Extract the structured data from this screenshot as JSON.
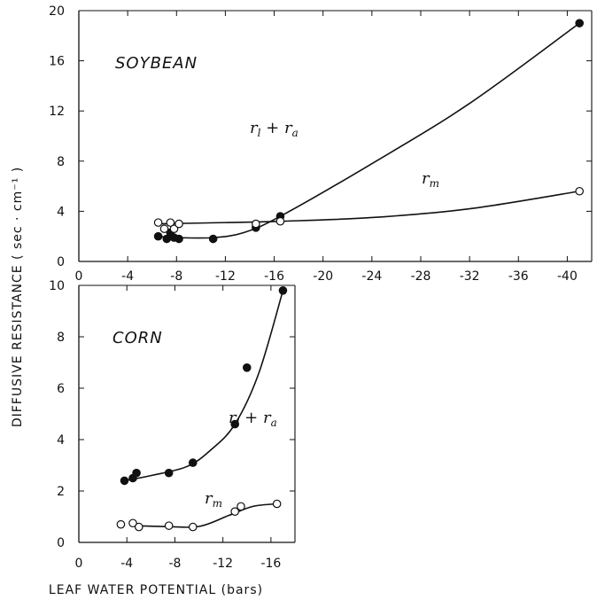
{
  "axis_titles": {
    "y": "DIFFUSIVE  RESISTANCE  ( sec · cm⁻¹ )",
    "x": "LEAF  WATER  POTENTIAL  (bars)"
  },
  "chart_data": [
    {
      "type": "scatter",
      "title": "SOYBEAN",
      "xlim": [
        0,
        -42
      ],
      "ylim": [
        0,
        20
      ],
      "x_ticks": [
        0,
        -4,
        -8,
        -12,
        -16,
        -20,
        -24,
        -28,
        -32,
        -36,
        -40
      ],
      "x_tick_labels": [
        "0",
        "-4",
        "-8",
        "-12",
        "-16",
        "-20",
        "-24",
        "-28",
        "-32",
        "-36",
        "-40"
      ],
      "y_ticks": [
        0,
        4,
        8,
        12,
        16,
        20
      ],
      "y_tick_labels": [
        "0",
        "4",
        "8",
        "12",
        "16",
        "20"
      ],
      "series": [
        {
          "name": "r_l + r_a",
          "label_main": "r",
          "label_sub1": "l",
          "label_mid": " + r",
          "label_sub2": "a",
          "marker": "filled",
          "points": [
            {
              "x": -6.5,
              "y": 2.0
            },
            {
              "x": -7.2,
              "y": 1.8
            },
            {
              "x": -7.5,
              "y": 2.3
            },
            {
              "x": -7.8,
              "y": 1.9
            },
            {
              "x": -8.2,
              "y": 1.8
            },
            {
              "x": -11.0,
              "y": 1.8
            },
            {
              "x": -14.5,
              "y": 2.7
            },
            {
              "x": -16.5,
              "y": 3.6
            },
            {
              "x": -41.0,
              "y": 19.0
            }
          ],
          "curve": [
            {
              "x": -6.5,
              "y": 2.0
            },
            {
              "x": -8.0,
              "y": 1.9
            },
            {
              "x": -11.0,
              "y": 1.9
            },
            {
              "x": -13.5,
              "y": 2.3
            },
            {
              "x": -16.5,
              "y": 3.6
            },
            {
              "x": -24.0,
              "y": 7.8
            },
            {
              "x": -32.0,
              "y": 12.6
            },
            {
              "x": -41.0,
              "y": 19.0
            }
          ]
        },
        {
          "name": "r_m",
          "label_main": "r",
          "label_sub1": "m",
          "marker": "open",
          "points": [
            {
              "x": -6.5,
              "y": 3.1
            },
            {
              "x": -7.0,
              "y": 2.6
            },
            {
              "x": -7.5,
              "y": 3.1
            },
            {
              "x": -7.8,
              "y": 2.6
            },
            {
              "x": -8.2,
              "y": 3.0
            },
            {
              "x": -14.5,
              "y": 3.0
            },
            {
              "x": -16.5,
              "y": 3.2
            },
            {
              "x": -41.0,
              "y": 5.6
            }
          ],
          "curve": [
            {
              "x": -6.5,
              "y": 3.0
            },
            {
              "x": -12.0,
              "y": 3.1
            },
            {
              "x": -16.5,
              "y": 3.2
            },
            {
              "x": -24.0,
              "y": 3.5
            },
            {
              "x": -32.0,
              "y": 4.2
            },
            {
              "x": -41.0,
              "y": 5.6
            }
          ]
        }
      ]
    },
    {
      "type": "scatter",
      "title": "CORN",
      "xlim": [
        0,
        -18
      ],
      "ylim": [
        0,
        10
      ],
      "x_ticks": [
        0,
        -4,
        -8,
        -12,
        -16
      ],
      "x_tick_labels": [
        "0",
        "-4",
        "-8",
        "-12",
        "-16"
      ],
      "y_ticks": [
        0,
        2,
        4,
        6,
        8,
        10
      ],
      "y_tick_labels": [
        "0",
        "2",
        "4",
        "6",
        "8",
        "10"
      ],
      "series": [
        {
          "name": "r_l + r_a",
          "label_main": "r",
          "label_sub1": "l",
          "label_mid": " + r",
          "label_sub2": "a",
          "marker": "filled",
          "points": [
            {
              "x": -3.8,
              "y": 2.4
            },
            {
              "x": -4.5,
              "y": 2.5
            },
            {
              "x": -4.8,
              "y": 2.7
            },
            {
              "x": -7.5,
              "y": 2.7
            },
            {
              "x": -9.5,
              "y": 3.1
            },
            {
              "x": -13.0,
              "y": 4.6
            },
            {
              "x": -14.0,
              "y": 6.8
            },
            {
              "x": -17.0,
              "y": 9.8
            }
          ],
          "curve": [
            {
              "x": -3.8,
              "y": 2.4
            },
            {
              "x": -6.0,
              "y": 2.6
            },
            {
              "x": -9.0,
              "y": 2.95
            },
            {
              "x": -11.0,
              "y": 3.6
            },
            {
              "x": -13.0,
              "y": 4.6
            },
            {
              "x": -15.0,
              "y": 6.6
            },
            {
              "x": -17.0,
              "y": 9.8
            }
          ]
        },
        {
          "name": "r_m",
          "label_main": "r",
          "label_sub1": "m",
          "marker": "open",
          "points": [
            {
              "x": -3.5,
              "y": 0.7
            },
            {
              "x": -4.5,
              "y": 0.75
            },
            {
              "x": -5.0,
              "y": 0.6
            },
            {
              "x": -7.5,
              "y": 0.65
            },
            {
              "x": -9.5,
              "y": 0.6
            },
            {
              "x": -13.0,
              "y": 1.2
            },
            {
              "x": -13.5,
              "y": 1.4
            },
            {
              "x": -16.5,
              "y": 1.5
            }
          ],
          "curve": [
            {
              "x": -4.5,
              "y": 0.65
            },
            {
              "x": -7.0,
              "y": 0.62
            },
            {
              "x": -10.0,
              "y": 0.62
            },
            {
              "x": -12.5,
              "y": 1.05
            },
            {
              "x": -14.5,
              "y": 1.4
            },
            {
              "x": -16.5,
              "y": 1.5
            }
          ]
        }
      ]
    }
  ]
}
